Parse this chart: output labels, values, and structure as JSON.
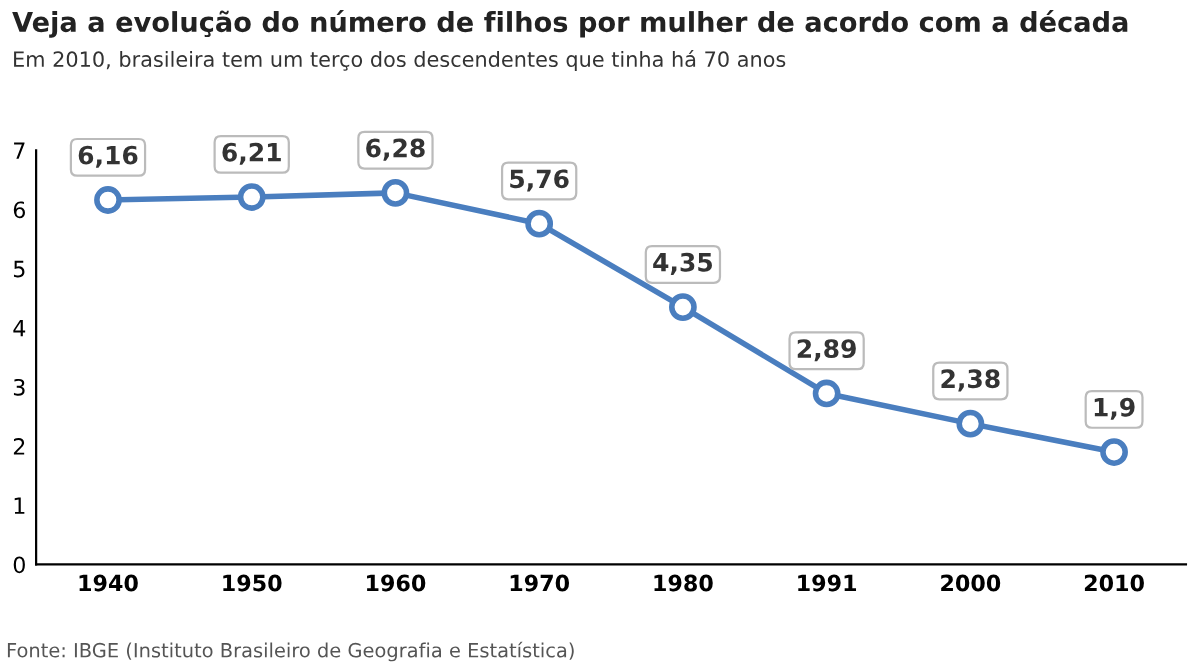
{
  "chart_data": {
    "type": "line",
    "title": "Veja a evolução do número de filhos por mulher de acordo com a década",
    "subtitle": "Em 2010, brasileira tem um terço dos descendentes que tinha há 70 anos",
    "categories": [
      "1940",
      "1950",
      "1960",
      "1970",
      "1980",
      "1991",
      "2000",
      "2010"
    ],
    "series": [
      {
        "color": "#4a7ebf",
        "values": [
          6.16,
          6.21,
          6.28,
          5.76,
          4.35,
          2.89,
          2.38,
          1.9
        ],
        "value_labels": [
          "6,16",
          "6,21",
          "6,28",
          "5,76",
          "4,35",
          "2,89",
          "2,38",
          "1,9"
        ]
      }
    ],
    "ylim": [
      0,
      7
    ],
    "yticks": [
      0,
      1,
      2,
      3,
      4,
      5,
      6,
      7
    ],
    "grid": false,
    "marker": "circle",
    "line_style": "solid",
    "annotations": [
      "Fonte: IBGE (Instituto Brasileiro de Geografia e Estatística)"
    ]
  }
}
